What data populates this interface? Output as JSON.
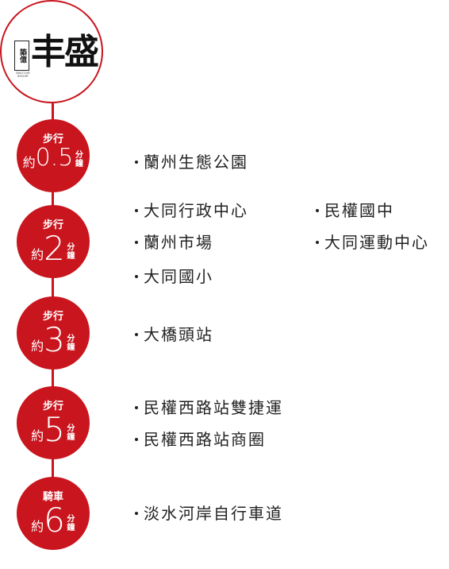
{
  "brand": {
    "vertical_text": "築億",
    "small_text": "BUILTOUR RESORT",
    "main_text": "丰盛",
    "accent_color": "#c9151e"
  },
  "groups": [
    {
      "mode": "步行",
      "approx": "約",
      "value": "0.5",
      "unit_top": "分",
      "unit_bottom": "鐘",
      "places": [
        "蘭州生態公園"
      ]
    },
    {
      "mode": "步行",
      "approx": "約",
      "value": "2",
      "unit_top": "分",
      "unit_bottom": "鐘",
      "places": [
        "大同行政中心",
        "民權國中",
        "蘭州市場",
        "大同運動中心",
        "大同國小"
      ]
    },
    {
      "mode": "步行",
      "approx": "約",
      "value": "3",
      "unit_top": "分",
      "unit_bottom": "鐘",
      "places": [
        "大橋頭站"
      ]
    },
    {
      "mode": "步行",
      "approx": "約",
      "value": "5",
      "unit_top": "分",
      "unit_bottom": "鐘",
      "places": [
        "民權西路站雙捷運",
        "民權西路站商圈"
      ]
    },
    {
      "mode": "騎車",
      "approx": "約",
      "value": "6",
      "unit_top": "分",
      "unit_bottom": "鐘",
      "places": [
        "淡水河岸自行車道"
      ]
    }
  ]
}
